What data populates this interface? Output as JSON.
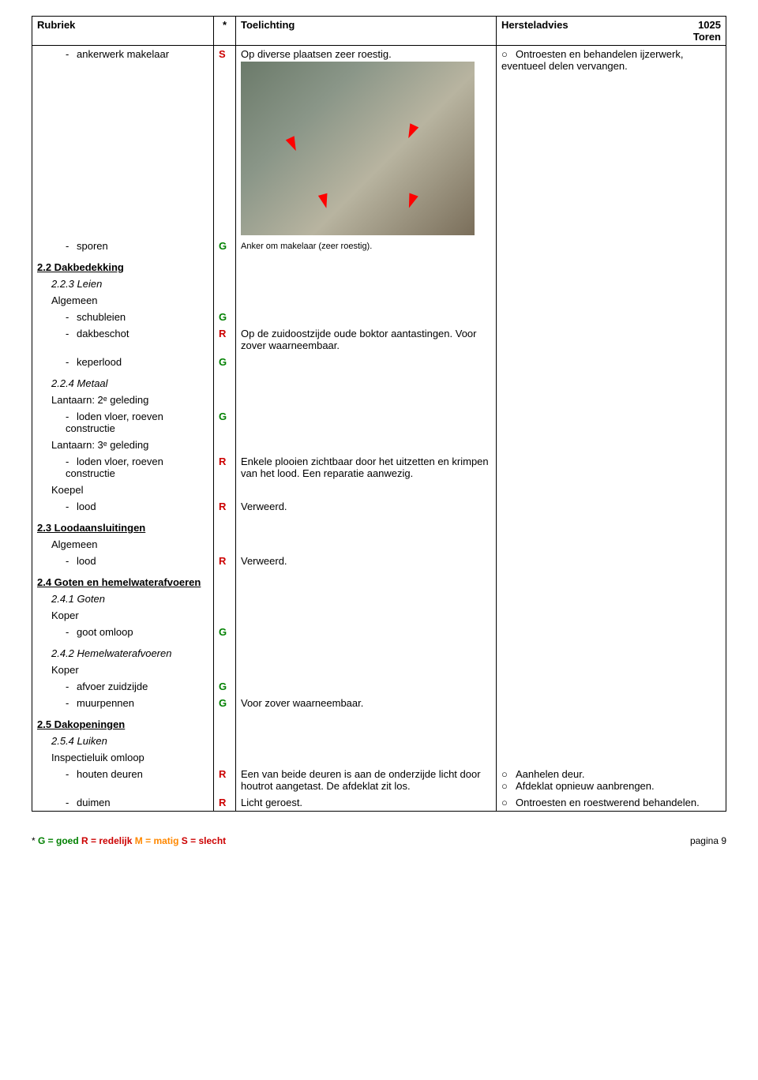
{
  "header": {
    "rubriek": "Rubriek",
    "star": "*",
    "toelichting": "Toelichting",
    "hersteladvies": "Hersteladvies",
    "code": "1025",
    "subtitle": "Toren"
  },
  "rows": {
    "r1_label": "ankerwerk makelaar",
    "r1_star": "S",
    "r1_toel": "Op diverse plaatsen zeer roestig.",
    "r1_adv": "Ontroesten en behandelen ijzerwerk, eventueel delen vervangen.",
    "caption": "Anker om makelaar (zeer roestig).",
    "r2_label": "sporen",
    "r2_star": "G",
    "h22": "2.2  Dakbedekking",
    "h223": "2.2.3  Leien",
    "algemeen": "Algemeen",
    "schubleien": "schubleien",
    "schubleien_star": "G",
    "dakbeschot": "dakbeschot",
    "dakbeschot_star": "R",
    "dakbeschot_toel": "Op de zuidoostzijde oude boktor aantastingen. Voor zover waarneembaar.",
    "keperlood": "keperlood",
    "keperlood_star": "G",
    "h224": "2.2.4  Metaal",
    "lant2": "Lantaarn: 2ᵉ geleding",
    "loden1": "loden vloer, roeven constructie",
    "loden1_star": "G",
    "lant3": "Lantaarn: 3ᵉ geleding",
    "loden2": "loden vloer, roeven constructie",
    "loden2_star": "R",
    "loden2_toel": "Enkele plooien zichtbaar door het uitzetten en krimpen van het lood. Een reparatie aanwezig.",
    "koepel": "Koepel",
    "lood1": "lood",
    "lood1_star": "R",
    "lood1_toel": "Verweerd.",
    "h23": "2.3  Loodaansluitingen",
    "lood2": "lood",
    "lood2_star": "R",
    "lood2_toel": "Verweerd.",
    "h24": "2.4  Goten en hemelwaterafvoeren",
    "h241": "2.4.1  Goten",
    "koper": "Koper",
    "goot": "goot omloop",
    "goot_star": "G",
    "h242": "2.4.2  Hemelwaterafvoeren",
    "afvoer": "afvoer zuidzijde",
    "afvoer_star": "G",
    "muurpennen": "muurpennen",
    "muurpennen_star": "G",
    "muurpennen_toel": "Voor zover waarneembaar.",
    "h25": "2.5  Dakopeningen",
    "h254": "2.5.4  Luiken",
    "inspectie": "Inspectieluik omloop",
    "houten": "houten deuren",
    "houten_star": "R",
    "houten_toel": "Een van beide deuren is aan de onderzijde licht door houtrot aangetast. De afdeklat zit los.",
    "houten_adv1": "Aanhelen deur.",
    "houten_adv2": "Afdeklat opnieuw aanbrengen.",
    "duimen": "duimen",
    "duimen_star": "R",
    "duimen_toel": "Licht geroest.",
    "duimen_adv": "Ontroesten en roestwerend behandelen."
  },
  "footer": {
    "legend_prefix": "* ",
    "g": "G = goed",
    "r": "R = redelijk",
    "m": "M = matig",
    "s": "S = slecht",
    "page": "pagina 9"
  }
}
